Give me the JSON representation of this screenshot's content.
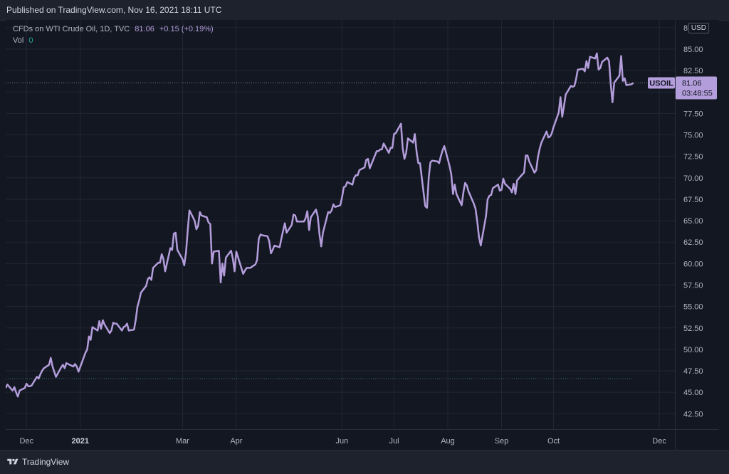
{
  "header": {
    "published": "Published on TradingView.com, Nov 16, 2021 18:11 UTC"
  },
  "legend": {
    "symbol": "CFDs on WTI Crude Oil, 1D, TVC",
    "last": "81.06",
    "change": "+0.15 (+0.19%)",
    "vol_label": "Vol",
    "vol_value": "0"
  },
  "price_tag": {
    "ticker": "USOIL",
    "price": "81.06",
    "countdown": "03:48:55"
  },
  "currency": "USD",
  "footer": {
    "brand": "TradingView"
  },
  "colors": {
    "background": "#131722",
    "line": "#b39ddb",
    "grid": "#232733",
    "volume_dotted": "#2e6f68"
  },
  "chart_data": {
    "type": "line",
    "title": "",
    "xlabel": "",
    "ylabel": "",
    "ylim": [
      40.7,
      88.4
    ],
    "y_ticks": [
      42.5,
      45.0,
      47.5,
      50.0,
      52.5,
      55.0,
      57.5,
      60.0,
      62.5,
      65.0,
      67.5,
      70.0,
      72.5,
      75.0,
      77.5,
      80.0,
      82.5,
      85.0,
      87.5
    ],
    "x_ticks": [
      {
        "label": "Dec",
        "date": "2020-12-01"
      },
      {
        "label": "2021",
        "date": "2021-01-01",
        "bold": true
      },
      {
        "label": "Mar",
        "date": "2021-03-01"
      },
      {
        "label": "Apr",
        "date": "2021-04-01"
      },
      {
        "label": "Jun",
        "date": "2021-06-01"
      },
      {
        "label": "Jul",
        "date": "2021-07-01"
      },
      {
        "label": "Aug",
        "date": "2021-08-01"
      },
      {
        "label": "Sep",
        "date": "2021-09-01"
      },
      {
        "label": "Oct",
        "date": "2021-10-01"
      },
      {
        "label": "Dec",
        "date": "2021-12-01"
      }
    ],
    "x_range": [
      "2020-11-19",
      "2021-12-10"
    ],
    "series": [
      {
        "name": "CFDs on WTI Crude Oil",
        "points": [
          [
            "2020-11-19",
            45.5
          ],
          [
            "2020-11-20",
            45.9
          ],
          [
            "2020-11-23",
            45.2
          ],
          [
            "2020-11-24",
            45.6
          ],
          [
            "2020-11-25",
            45.0
          ],
          [
            "2020-11-26",
            44.5
          ],
          [
            "2020-11-27",
            45.2
          ],
          [
            "2020-11-30",
            45.5
          ],
          [
            "2020-12-01",
            46.0
          ],
          [
            "2020-12-02",
            45.7
          ],
          [
            "2020-12-03",
            45.7
          ],
          [
            "2020-12-04",
            45.8
          ],
          [
            "2020-12-07",
            46.8
          ],
          [
            "2020-12-08",
            46.6
          ],
          [
            "2020-12-09",
            47.1
          ],
          [
            "2020-12-10",
            47.5
          ],
          [
            "2020-12-11",
            47.8
          ],
          [
            "2020-12-14",
            48.2
          ],
          [
            "2020-12-15",
            49.0
          ],
          [
            "2020-12-16",
            48.0
          ],
          [
            "2020-12-17",
            47.4
          ],
          [
            "2020-12-18",
            46.8
          ],
          [
            "2020-12-21",
            47.9
          ],
          [
            "2020-12-22",
            48.2
          ],
          [
            "2020-12-23",
            47.8
          ],
          [
            "2020-12-24",
            48.4
          ],
          [
            "2020-12-28",
            48.0
          ],
          [
            "2020-12-29",
            48.3
          ],
          [
            "2020-12-30",
            48.0
          ],
          [
            "2020-12-31",
            47.4
          ],
          [
            "2021-01-04",
            49.6
          ],
          [
            "2021-01-05",
            50.0
          ],
          [
            "2021-01-06",
            51.5
          ],
          [
            "2021-01-07",
            51.1
          ],
          [
            "2021-01-08",
            52.6
          ],
          [
            "2021-01-11",
            52.2
          ],
          [
            "2021-01-12",
            53.3
          ],
          [
            "2021-01-13",
            52.4
          ],
          [
            "2021-01-14",
            53.4
          ],
          [
            "2021-01-15",
            52.9
          ],
          [
            "2021-01-18",
            51.9
          ],
          [
            "2021-01-19",
            52.2
          ],
          [
            "2021-01-20",
            53.1
          ],
          [
            "2021-01-21",
            53.0
          ],
          [
            "2021-01-22",
            53.0
          ],
          [
            "2021-01-25",
            52.2
          ],
          [
            "2021-01-26",
            52.6
          ],
          [
            "2021-01-27",
            52.7
          ],
          [
            "2021-01-28",
            53.0
          ],
          [
            "2021-01-29",
            52.2
          ],
          [
            "2021-02-01",
            52.3
          ],
          [
            "2021-02-02",
            53.4
          ],
          [
            "2021-02-03",
            55.0
          ],
          [
            "2021-02-04",
            55.7
          ],
          [
            "2021-02-05",
            56.6
          ],
          [
            "2021-02-08",
            57.4
          ],
          [
            "2021-02-09",
            58.2
          ],
          [
            "2021-02-10",
            58.4
          ],
          [
            "2021-02-11",
            58.1
          ],
          [
            "2021-02-12",
            59.5
          ],
          [
            "2021-02-15",
            60.1
          ],
          [
            "2021-02-16",
            60.1
          ],
          [
            "2021-02-17",
            61.1
          ],
          [
            "2021-02-18",
            60.5
          ],
          [
            "2021-02-19",
            59.1
          ],
          [
            "2021-02-22",
            61.8
          ],
          [
            "2021-02-23",
            61.6
          ],
          [
            "2021-02-24",
            63.5
          ],
          [
            "2021-02-25",
            63.6
          ],
          [
            "2021-02-26",
            61.6
          ],
          [
            "2021-03-01",
            60.5
          ],
          [
            "2021-03-02",
            59.8
          ],
          [
            "2021-03-03",
            61.3
          ],
          [
            "2021-03-04",
            63.9
          ],
          [
            "2021-03-05",
            66.2
          ],
          [
            "2021-03-08",
            65.0
          ],
          [
            "2021-03-09",
            64.0
          ],
          [
            "2021-03-10",
            64.4
          ],
          [
            "2021-03-11",
            66.0
          ],
          [
            "2021-03-12",
            65.6
          ],
          [
            "2021-03-15",
            65.4
          ],
          [
            "2021-03-16",
            64.8
          ],
          [
            "2021-03-17",
            64.6
          ],
          [
            "2021-03-18",
            60.0
          ],
          [
            "2021-03-19",
            61.4
          ],
          [
            "2021-03-22",
            61.5
          ],
          [
            "2021-03-23",
            57.8
          ],
          [
            "2021-03-24",
            60.0
          ],
          [
            "2021-03-25",
            58.6
          ],
          [
            "2021-03-26",
            60.7
          ],
          [
            "2021-03-29",
            61.5
          ],
          [
            "2021-03-30",
            60.6
          ],
          [
            "2021-03-31",
            59.1
          ],
          [
            "2021-04-01",
            61.4
          ],
          [
            "2021-04-05",
            58.8
          ],
          [
            "2021-04-06",
            59.2
          ],
          [
            "2021-04-07",
            59.5
          ],
          [
            "2021-04-08",
            59.5
          ],
          [
            "2021-04-09",
            59.5
          ],
          [
            "2021-04-12",
            59.9
          ],
          [
            "2021-04-13",
            60.4
          ],
          [
            "2021-04-14",
            62.9
          ],
          [
            "2021-04-15",
            63.4
          ],
          [
            "2021-04-16",
            63.3
          ],
          [
            "2021-04-19",
            63.2
          ],
          [
            "2021-04-20",
            62.6
          ],
          [
            "2021-04-21",
            61.2
          ],
          [
            "2021-04-22",
            61.6
          ],
          [
            "2021-04-23",
            62.1
          ],
          [
            "2021-04-26",
            61.9
          ],
          [
            "2021-04-27",
            62.9
          ],
          [
            "2021-04-28",
            63.8
          ],
          [
            "2021-04-29",
            64.7
          ],
          [
            "2021-04-30",
            63.6
          ],
          [
            "2021-05-03",
            64.5
          ],
          [
            "2021-05-04",
            65.7
          ],
          [
            "2021-05-05",
            65.6
          ],
          [
            "2021-05-06",
            64.9
          ],
          [
            "2021-05-07",
            64.9
          ],
          [
            "2021-05-10",
            64.9
          ],
          [
            "2021-05-11",
            65.3
          ],
          [
            "2021-05-12",
            66.1
          ],
          [
            "2021-05-13",
            63.9
          ],
          [
            "2021-05-14",
            65.4
          ],
          [
            "2021-05-17",
            66.3
          ],
          [
            "2021-05-18",
            65.5
          ],
          [
            "2021-05-19",
            63.4
          ],
          [
            "2021-05-20",
            62.0
          ],
          [
            "2021-05-21",
            63.6
          ],
          [
            "2021-05-24",
            66.0
          ],
          [
            "2021-05-25",
            65.9
          ],
          [
            "2021-05-26",
            66.2
          ],
          [
            "2021-05-27",
            66.9
          ],
          [
            "2021-05-28",
            66.6
          ],
          [
            "2021-05-31",
            66.8
          ],
          [
            "2021-06-01",
            67.7
          ],
          [
            "2021-06-02",
            68.9
          ],
          [
            "2021-06-03",
            69.0
          ],
          [
            "2021-06-04",
            69.5
          ],
          [
            "2021-06-07",
            69.2
          ],
          [
            "2021-06-08",
            70.0
          ],
          [
            "2021-06-09",
            70.3
          ],
          [
            "2021-06-10",
            70.3
          ],
          [
            "2021-06-11",
            70.9
          ],
          [
            "2021-06-14",
            71.2
          ],
          [
            "2021-06-15",
            72.1
          ],
          [
            "2021-06-16",
            72.2
          ],
          [
            "2021-06-17",
            71.1
          ],
          [
            "2021-06-18",
            71.6
          ],
          [
            "2021-06-21",
            73.1
          ],
          [
            "2021-06-22",
            73.1
          ],
          [
            "2021-06-23",
            73.3
          ],
          [
            "2021-06-24",
            73.3
          ],
          [
            "2021-06-25",
            74.0
          ],
          [
            "2021-06-28",
            72.9
          ],
          [
            "2021-06-29",
            73.5
          ],
          [
            "2021-06-30",
            73.5
          ],
          [
            "2021-07-01",
            75.1
          ],
          [
            "2021-07-02",
            75.2
          ],
          [
            "2021-07-05",
            76.3
          ],
          [
            "2021-07-06",
            73.4
          ],
          [
            "2021-07-07",
            72.2
          ],
          [
            "2021-07-08",
            72.9
          ],
          [
            "2021-07-09",
            74.6
          ],
          [
            "2021-07-12",
            74.1
          ],
          [
            "2021-07-13",
            75.1
          ],
          [
            "2021-07-14",
            73.0
          ],
          [
            "2021-07-15",
            71.7
          ],
          [
            "2021-07-16",
            71.7
          ],
          [
            "2021-07-19",
            66.7
          ],
          [
            "2021-07-20",
            66.5
          ],
          [
            "2021-07-21",
            70.0
          ],
          [
            "2021-07-22",
            71.8
          ],
          [
            "2021-07-23",
            72.0
          ],
          [
            "2021-07-26",
            71.9
          ],
          [
            "2021-07-27",
            71.7
          ],
          [
            "2021-07-28",
            72.5
          ],
          [
            "2021-07-29",
            73.2
          ],
          [
            "2021-07-30",
            73.7
          ],
          [
            "2021-08-02",
            71.4
          ],
          [
            "2021-08-03",
            70.4
          ],
          [
            "2021-08-04",
            68.1
          ],
          [
            "2021-08-05",
            69.2
          ],
          [
            "2021-08-06",
            68.1
          ],
          [
            "2021-08-09",
            66.8
          ],
          [
            "2021-08-10",
            68.3
          ],
          [
            "2021-08-11",
            69.4
          ],
          [
            "2021-08-12",
            69.1
          ],
          [
            "2021-08-13",
            68.4
          ],
          [
            "2021-08-16",
            67.0
          ],
          [
            "2021-08-17",
            66.4
          ],
          [
            "2021-08-18",
            64.9
          ],
          [
            "2021-08-19",
            63.1
          ],
          [
            "2021-08-20",
            62.1
          ],
          [
            "2021-08-23",
            65.5
          ],
          [
            "2021-08-24",
            67.5
          ],
          [
            "2021-08-25",
            67.9
          ],
          [
            "2021-08-26",
            68.0
          ],
          [
            "2021-08-27",
            68.8
          ],
          [
            "2021-08-30",
            69.2
          ],
          [
            "2021-08-31",
            68.5
          ],
          [
            "2021-09-01",
            68.6
          ],
          [
            "2021-09-02",
            69.9
          ],
          [
            "2021-09-03",
            69.3
          ],
          [
            "2021-09-06",
            68.7
          ],
          [
            "2021-09-07",
            68.3
          ],
          [
            "2021-09-08",
            69.3
          ],
          [
            "2021-09-09",
            68.1
          ],
          [
            "2021-09-10",
            69.7
          ],
          [
            "2021-09-13",
            70.4
          ],
          [
            "2021-09-14",
            70.6
          ],
          [
            "2021-09-15",
            72.6
          ],
          [
            "2021-09-16",
            72.6
          ],
          [
            "2021-09-17",
            71.9
          ],
          [
            "2021-09-20",
            70.6
          ],
          [
            "2021-09-21",
            70.9
          ],
          [
            "2021-09-22",
            72.4
          ],
          [
            "2021-09-23",
            73.4
          ],
          [
            "2021-09-24",
            74.1
          ],
          [
            "2021-09-27",
            75.4
          ],
          [
            "2021-09-28",
            74.7
          ],
          [
            "2021-09-29",
            74.8
          ],
          [
            "2021-09-30",
            75.2
          ],
          [
            "2021-10-01",
            75.9
          ],
          [
            "2021-10-04",
            77.6
          ],
          [
            "2021-10-05",
            79.4
          ],
          [
            "2021-10-06",
            77.1
          ],
          [
            "2021-10-07",
            78.3
          ],
          [
            "2021-10-08",
            79.7
          ],
          [
            "2021-10-11",
            80.7
          ],
          [
            "2021-10-12",
            80.6
          ],
          [
            "2021-10-13",
            80.7
          ],
          [
            "2021-10-14",
            81.5
          ],
          [
            "2021-10-15",
            82.6
          ],
          [
            "2021-10-18",
            82.7
          ],
          [
            "2021-10-19",
            82.4
          ],
          [
            "2021-10-20",
            83.6
          ],
          [
            "2021-10-21",
            82.8
          ],
          [
            "2021-10-22",
            84.1
          ],
          [
            "2021-10-25",
            83.9
          ],
          [
            "2021-10-26",
            84.5
          ],
          [
            "2021-10-27",
            82.6
          ],
          [
            "2021-10-28",
            82.8
          ],
          [
            "2021-10-29",
            83.5
          ],
          [
            "2021-11-01",
            84.0
          ],
          [
            "2021-11-02",
            83.6
          ],
          [
            "2021-11-03",
            80.9
          ],
          [
            "2021-11-04",
            78.8
          ],
          [
            "2021-11-05",
            81.1
          ],
          [
            "2021-11-08",
            81.9
          ],
          [
            "2021-11-09",
            84.2
          ],
          [
            "2021-11-10",
            81.3
          ],
          [
            "2021-11-11",
            81.6
          ],
          [
            "2021-11-12",
            80.8
          ],
          [
            "2021-11-15",
            80.9
          ],
          [
            "2021-11-16",
            81.06
          ]
        ]
      }
    ],
    "volume_value": 0,
    "last_price": 81.06,
    "grid": true
  }
}
